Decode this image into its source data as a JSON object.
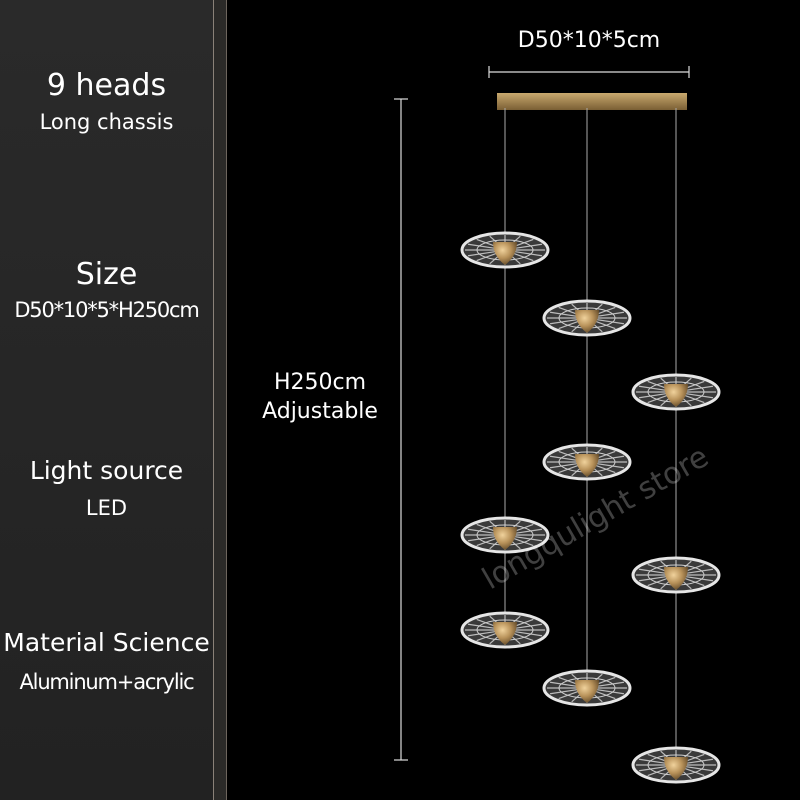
{
  "specs": [
    {
      "title": "9 heads",
      "value": "Long chassis"
    },
    {
      "title": "Size",
      "value": "D50*10*5*H250cm"
    },
    {
      "title": "Light source",
      "value": "LED"
    },
    {
      "title": "Material Science",
      "value": "Aluminum+acrylic"
    }
  ],
  "dimensions": {
    "width_label": "D50*10*5cm",
    "height_label": "H250cm",
    "height_note": "Adjustable"
  },
  "watermark": "longqulight store",
  "colors": {
    "background": "#000000",
    "panel": "#262626",
    "brass": "#b8925a",
    "disc": "#d8d8d8"
  }
}
